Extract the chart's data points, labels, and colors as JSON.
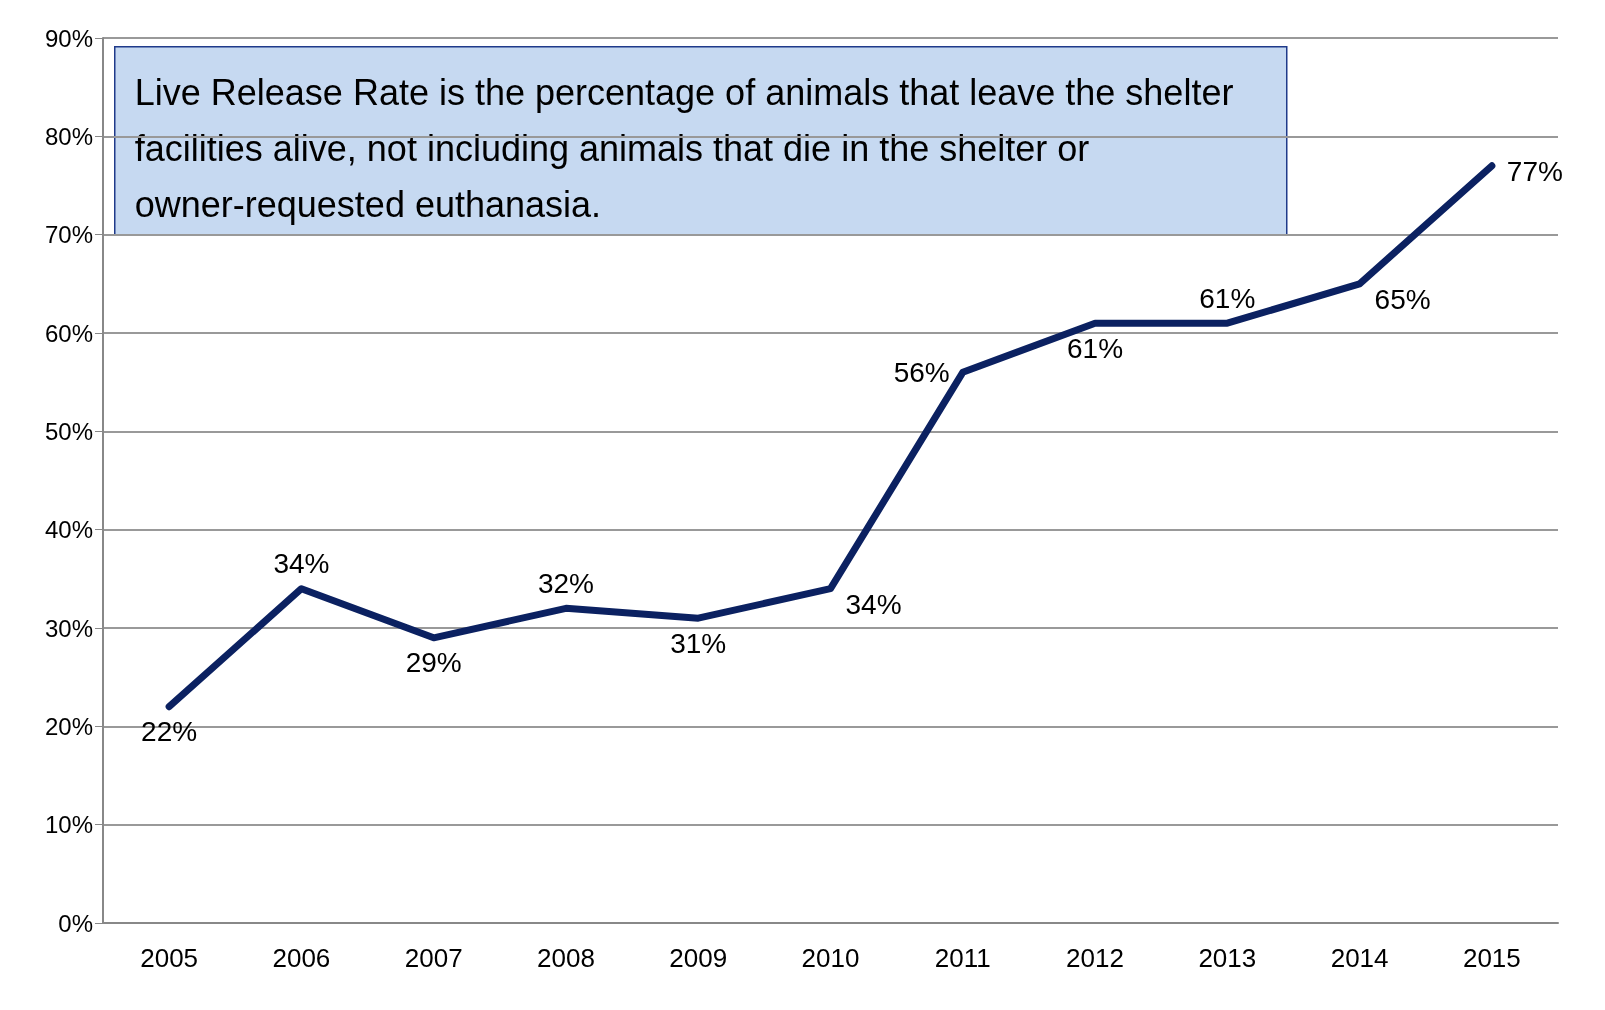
{
  "chart_data": {
    "type": "line",
    "categories": [
      "2005",
      "2006",
      "2007",
      "2008",
      "2009",
      "2010",
      "2011",
      "2012",
      "2013",
      "2014",
      "2015"
    ],
    "values": [
      22,
      34,
      29,
      32,
      31,
      34,
      56,
      61,
      61,
      65,
      77
    ],
    "color": "#0b2161",
    "ylim": [
      0,
      90
    ],
    "yticks": [
      {
        "value": 0,
        "label": "0%"
      },
      {
        "value": 10,
        "label": "10%"
      },
      {
        "value": 20,
        "label": "20%"
      },
      {
        "value": 30,
        "label": "30%"
      },
      {
        "value": 40,
        "label": "40%"
      },
      {
        "value": 50,
        "label": "50%"
      },
      {
        "value": 60,
        "label": "60%"
      },
      {
        "value": 70,
        "label": "70%"
      },
      {
        "value": 80,
        "label": "80%"
      },
      {
        "value": 90,
        "label": "90%"
      }
    ],
    "value_labels": [
      "22%",
      "34%",
      "29%",
      "32%",
      "31%",
      "34%",
      "56%",
      "61%",
      "61%",
      "65%",
      "77%"
    ],
    "annotations": [
      "Live Release Rate is the percentage of animals that leave the shelter facilities alive, not including animals that die in the shelter or owner-requested euthanasia."
    ],
    "grid": "y",
    "marker": "none",
    "line_style": "solid"
  }
}
